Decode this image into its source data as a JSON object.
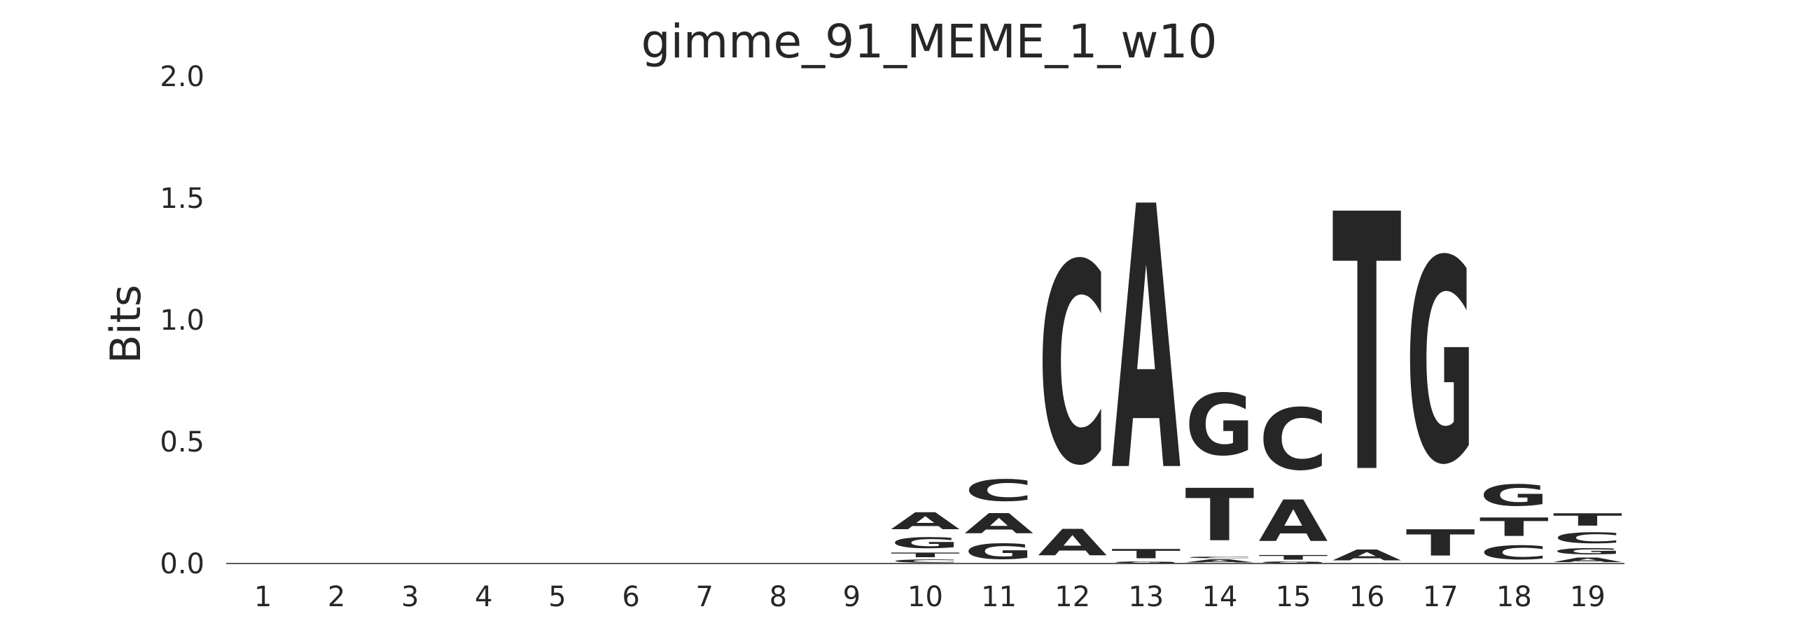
{
  "chart_data": {
    "type": "sequence-logo",
    "title": "gimme_91_MEME_1_w10",
    "xlabel": "",
    "ylabel": "Bits",
    "ylim": [
      0,
      2
    ],
    "yticks": [
      "0.0",
      "0.5",
      "1.0",
      "1.5",
      "2.0"
    ],
    "ytick_values": [
      0,
      0.5,
      1,
      1.5,
      2
    ],
    "positions": [
      "1",
      "2",
      "3",
      "4",
      "5",
      "6",
      "7",
      "8",
      "9",
      "10",
      "11",
      "12",
      "13",
      "14",
      "15",
      "16",
      "17",
      "18",
      "19"
    ],
    "colors": {
      "A": "#008000",
      "C": "#0000ff",
      "G": "#ffa500",
      "T": "#ff0000"
    },
    "grid": false,
    "columns": [
      [],
      [],
      [],
      [],
      [],
      [],
      [],
      [],
      [],
      [
        {
          "base": "C",
          "bits": 0.02
        },
        {
          "base": "T",
          "bits": 0.03
        },
        {
          "base": "G",
          "bits": 0.07
        },
        {
          "base": "A",
          "bits": 0.11
        }
      ],
      [
        {
          "base": "G",
          "bits": 0.1
        },
        {
          "base": "A",
          "bits": 0.13
        },
        {
          "base": "C",
          "bits": 0.14
        }
      ],
      [
        {
          "base": "A",
          "bits": 0.17
        },
        {
          "base": "C",
          "bits": 1.3
        }
      ],
      [
        {
          "base": "G",
          "bits": 0.01
        },
        {
          "base": "T",
          "bits": 0.06
        },
        {
          "base": "A",
          "bits": 1.71
        }
      ],
      [
        {
          "base": "A",
          "bits": 0.02
        },
        {
          "base": "C",
          "bits": 0.01
        },
        {
          "base": "T",
          "bits": 0.34
        },
        {
          "base": "G",
          "bits": 0.4
        }
      ],
      [
        {
          "base": "G",
          "bits": 0.01
        },
        {
          "base": "T",
          "bits": 0.03
        },
        {
          "base": "A",
          "bits": 0.27
        },
        {
          "base": "C",
          "bits": 0.4
        }
      ],
      [
        {
          "base": "A",
          "bits": 0.07
        },
        {
          "base": "T",
          "bits": 1.67
        }
      ],
      [
        {
          "base": "T",
          "bits": 0.17
        },
        {
          "base": "G",
          "bits": 1.32
        }
      ],
      [
        {
          "base": "C",
          "bits": 0.09
        },
        {
          "base": "T",
          "bits": 0.12
        },
        {
          "base": "G",
          "bits": 0.14
        }
      ],
      [
        {
          "base": "A",
          "bits": 0.03
        },
        {
          "base": "G",
          "bits": 0.04
        },
        {
          "base": "C",
          "bits": 0.07
        },
        {
          "base": "T",
          "bits": 0.08
        }
      ]
    ]
  }
}
